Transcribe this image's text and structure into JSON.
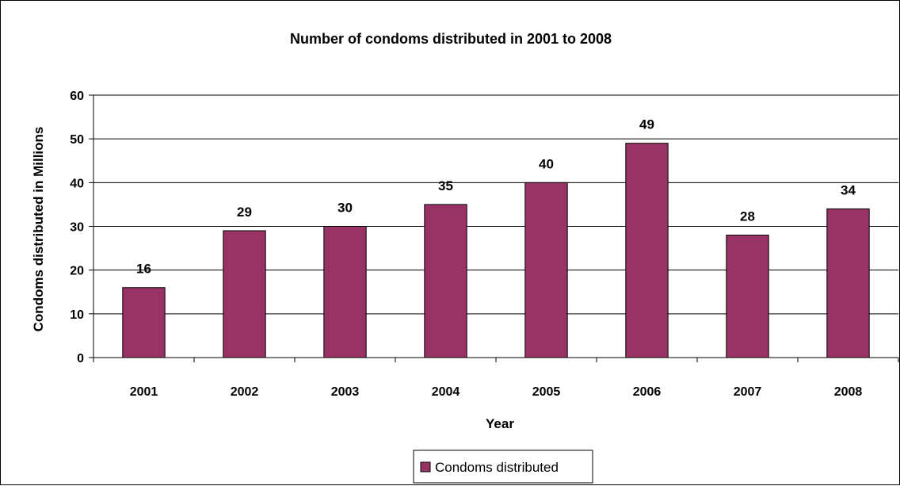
{
  "chart_data": {
    "type": "bar",
    "title": "Number of condoms distributed in 2001 to 2008",
    "xlabel": "Year",
    "ylabel": "Condoms distributed in Millions",
    "categories": [
      "2001",
      "2002",
      "2003",
      "2004",
      "2005",
      "2006",
      "2007",
      "2008"
    ],
    "series": [
      {
        "name": "Condoms distributed",
        "values": [
          16,
          29,
          30,
          35,
          40,
          49,
          28,
          34
        ],
        "color": "#993366"
      }
    ],
    "ylim": [
      0,
      60
    ],
    "yticks": [
      "0",
      "10",
      "20",
      "30",
      "40",
      "50",
      "60"
    ],
    "grid": true,
    "legend_position": "bottom",
    "data_labels": true
  }
}
